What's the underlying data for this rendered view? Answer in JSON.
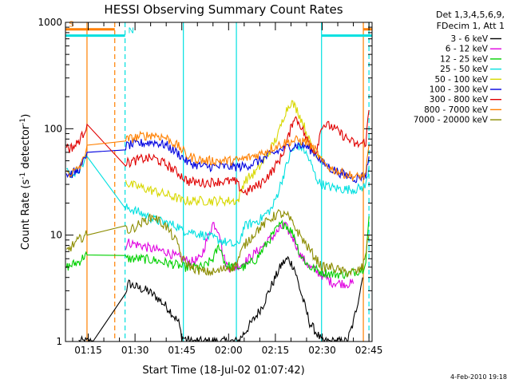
{
  "chart_data": {
    "type": "line",
    "title": "HESSI Observing Summary Count Rates",
    "xlabel": "Start Time (18-Jul-02 01:07:42)",
    "ylabel_main": "Count Rate (s",
    "ylabel_sup1": "-1",
    "ylabel_mid": " detector",
    "ylabel_sup2": "-1",
    "ylabel_end": ")",
    "y_scale": "log",
    "ylim": [
      1,
      1000
    ],
    "xlim_minutes": [
      67.7,
      166.0
    ],
    "x_ticks": [
      {
        "label": "01:15",
        "minute": 75
      },
      {
        "label": "01:30",
        "minute": 90
      },
      {
        "label": "01:45",
        "minute": 105
      },
      {
        "label": "02:00",
        "minute": 120
      },
      {
        "label": "02:15",
        "minute": 135
      },
      {
        "label": "02:30",
        "minute": 150
      },
      {
        "label": "02:45",
        "minute": 165
      }
    ],
    "y_ticks": [
      {
        "label": "1",
        "value": 1
      },
      {
        "label": "10",
        "value": 10
      },
      {
        "label": "100",
        "value": 100
      },
      {
        "label": "1000",
        "value": 1000
      }
    ],
    "legend": {
      "title_line1": "Det 1,3,4,5,6,9,",
      "title_line2": "FDecim 1, Att 1",
      "placement": "right"
    },
    "series": [
      {
        "name": "3 - 6 keV",
        "color": "#000000",
        "x": [
          72,
          76,
          76.5,
          87,
          88,
          91,
          94,
          97,
          101,
          104,
          105,
          108,
          112,
          114,
          118,
          122,
          123,
          125,
          128,
          131,
          133,
          135,
          137,
          139,
          141,
          143,
          146,
          150,
          154,
          157,
          158,
          160,
          163
        ],
        "y": [
          1,
          1,
          1,
          3,
          3.5,
          3.2,
          3,
          2.6,
          2,
          1.5,
          1.1,
          1,
          1,
          1,
          1,
          1,
          1,
          1.2,
          1.6,
          2.2,
          3,
          4,
          5.3,
          6,
          5,
          3,
          1.5,
          1,
          1,
          1,
          1,
          1.5,
          4
        ]
      },
      {
        "name": "6 - 12 keV",
        "color": "#e000e0",
        "x": [
          87,
          88,
          92,
          96,
          100,
          103,
          105,
          108,
          111,
          113,
          115,
          117,
          118,
          119,
          120,
          122,
          125,
          129,
          133,
          136,
          138,
          141,
          143,
          146,
          150,
          153,
          157,
          160
        ],
        "y": [
          8,
          8.5,
          8,
          7.3,
          7,
          6.3,
          6,
          5.6,
          6,
          9,
          13,
          11,
          7,
          5.5,
          5,
          5,
          5.5,
          7,
          9,
          11,
          12.5,
          9,
          6.5,
          5,
          4.2,
          3.6,
          3.5,
          3.5
        ]
      },
      {
        "name": "12 - 25 keV",
        "color": "#00d000",
        "x": [
          68,
          70,
          72,
          74,
          74.6,
          87,
          88,
          92,
          96,
          100,
          104,
          105,
          108,
          112,
          115,
          117,
          119,
          121,
          122,
          125,
          129,
          133,
          136,
          138,
          141,
          143,
          146,
          150,
          153,
          158,
          163,
          164,
          165
        ],
        "y": [
          5,
          5.3,
          5.6,
          6.5,
          6.5,
          6,
          6,
          6,
          5.8,
          5.5,
          5.2,
          5,
          5,
          5,
          6,
          8,
          5.3,
          5,
          5,
          5,
          6,
          9,
          12,
          13,
          10,
          6.5,
          5,
          4.5,
          4.3,
          4.3,
          4.8,
          6,
          15
        ]
      },
      {
        "name": "25 - 50 keV",
        "color": "#00e0e0",
        "x": [
          68,
          69,
          71,
          73,
          74.6,
          87,
          88,
          92,
          96,
          100,
          104,
          105,
          107,
          112,
          117,
          122,
          123,
          125,
          130,
          134,
          136,
          138,
          140,
          142,
          144,
          146,
          148,
          149.5,
          150,
          153,
          157,
          161,
          164,
          165
        ],
        "y": [
          40,
          38,
          39,
          45,
          55,
          18,
          18,
          16,
          14,
          13,
          12,
          11,
          11,
          10,
          9,
          8,
          8,
          12,
          14,
          18,
          26,
          40,
          60,
          70,
          65,
          50,
          35,
          30,
          30,
          28,
          27,
          27,
          29,
          45
        ]
      },
      {
        "name": "50 - 100 keV",
        "color": "#d8d800",
        "x": [
          87,
          88,
          92,
          96,
          100,
          104,
          105,
          108,
          112,
          116,
          120,
          123,
          125,
          129,
          133,
          136,
          138,
          140,
          142,
          144,
          146,
          148,
          150
        ],
        "y": [
          33,
          30,
          28,
          26,
          24,
          22,
          21,
          21,
          21,
          21,
          21,
          21,
          32,
          40,
          60,
          90,
          140,
          180,
          150,
          110,
          75,
          60,
          55
        ]
      },
      {
        "name": "100 - 300 keV",
        "color": "#0000e0",
        "x": [
          68,
          69,
          71,
          73,
          74.6,
          87,
          88,
          92,
          96,
          100,
          104,
          107,
          112,
          117,
          122,
          125,
          130,
          134,
          138,
          142,
          145,
          148,
          150,
          153,
          157,
          161,
          164,
          165
        ],
        "y": [
          38,
          37,
          39,
          45,
          60,
          68,
          70,
          73,
          75,
          70,
          58,
          48,
          44,
          44,
          44,
          44,
          50,
          58,
          66,
          70,
          68,
          58,
          48,
          42,
          37,
          34,
          37,
          55
        ]
      },
      {
        "name": "300 - 800 keV",
        "color": "#e00000",
        "x": [
          68,
          69,
          71,
          73,
          74.6,
          87,
          88,
          92,
          96,
          100,
          104,
          107,
          112,
          117,
          122,
          125,
          130,
          134,
          137,
          139,
          141,
          143,
          145,
          148,
          150,
          153,
          157,
          161,
          164,
          165
        ],
        "y": [
          70,
          65,
          70,
          85,
          110,
          48,
          48,
          52,
          53,
          46,
          38,
          32,
          31,
          32,
          32,
          25,
          30,
          40,
          55,
          80,
          130,
          110,
          80,
          60,
          110,
          105,
          85,
          70,
          75,
          150
        ]
      },
      {
        "name": "800 - 7000 keV",
        "color": "#ff8000",
        "x": [
          68,
          69,
          71,
          73,
          74.6,
          87,
          88,
          92,
          96,
          100,
          104,
          107,
          112,
          117,
          122,
          125,
          130,
          134,
          138,
          142,
          145,
          148,
          150,
          153,
          157,
          161,
          164,
          165
        ],
        "y": [
          40,
          38,
          40,
          47,
          70,
          78,
          80,
          85,
          88,
          82,
          68,
          55,
          50,
          50,
          50,
          52,
          58,
          66,
          74,
          78,
          75,
          62,
          48,
          42,
          38,
          35,
          37,
          70
        ]
      },
      {
        "name": "7000 - 20000 keV",
        "color": "#8c8c00",
        "x": [
          68,
          70,
          72,
          74,
          74.6,
          87,
          88,
          92,
          96,
          100,
          104,
          105,
          108,
          112,
          116,
          120,
          122,
          125,
          129,
          133,
          136,
          139,
          142,
          145,
          148,
          150,
          153,
          157,
          161,
          163,
          165
        ],
        "y": [
          7,
          8,
          9,
          10,
          10,
          12,
          11,
          13,
          15,
          12,
          8,
          6,
          5,
          4.5,
          4.5,
          5,
          5,
          8,
          11,
          14,
          16,
          15,
          11,
          8,
          6,
          5,
          5,
          4.5,
          4.5,
          5,
          10
        ]
      }
    ],
    "vertical_lines": [
      {
        "color": "#ff8000",
        "minute": 74.6,
        "style": "solid"
      },
      {
        "color": "#ff8000",
        "minute": 83.5,
        "style": "dashed"
      },
      {
        "color": "#00e0e0",
        "minute": 86.8,
        "style": "dashed"
      },
      {
        "color": "#00e0e0",
        "minute": 105.5,
        "style": "solid"
      },
      {
        "color": "#00e0e0",
        "minute": 122.5,
        "style": "solid"
      },
      {
        "color": "#00e0e0",
        "minute": 149.8,
        "style": "solid"
      },
      {
        "color": "#ff8000",
        "minute": 163.2,
        "style": "solid"
      },
      {
        "color": "#00e0e0",
        "minute": 165.0,
        "style": "dashed"
      }
    ],
    "flag_bars": [
      {
        "label": "S",
        "color": "#ff8000",
        "x0": 67.7,
        "x1": 83.5,
        "y_value": 860,
        "label_minute": 68.8
      },
      {
        "label": "N",
        "color": "#00e0e0",
        "x0": 67.7,
        "x1": 86.8,
        "y_value": 750,
        "label_minute": 87.8
      },
      {
        "label": "",
        "color": "#ff8000",
        "x0": 163.2,
        "x1": 166,
        "y_value": 860
      },
      {
        "label": "",
        "color": "#00e0e0",
        "x0": 149.8,
        "x1": 166,
        "y_value": 750
      }
    ]
  },
  "timestamp": "4-Feb-2010 19:18"
}
